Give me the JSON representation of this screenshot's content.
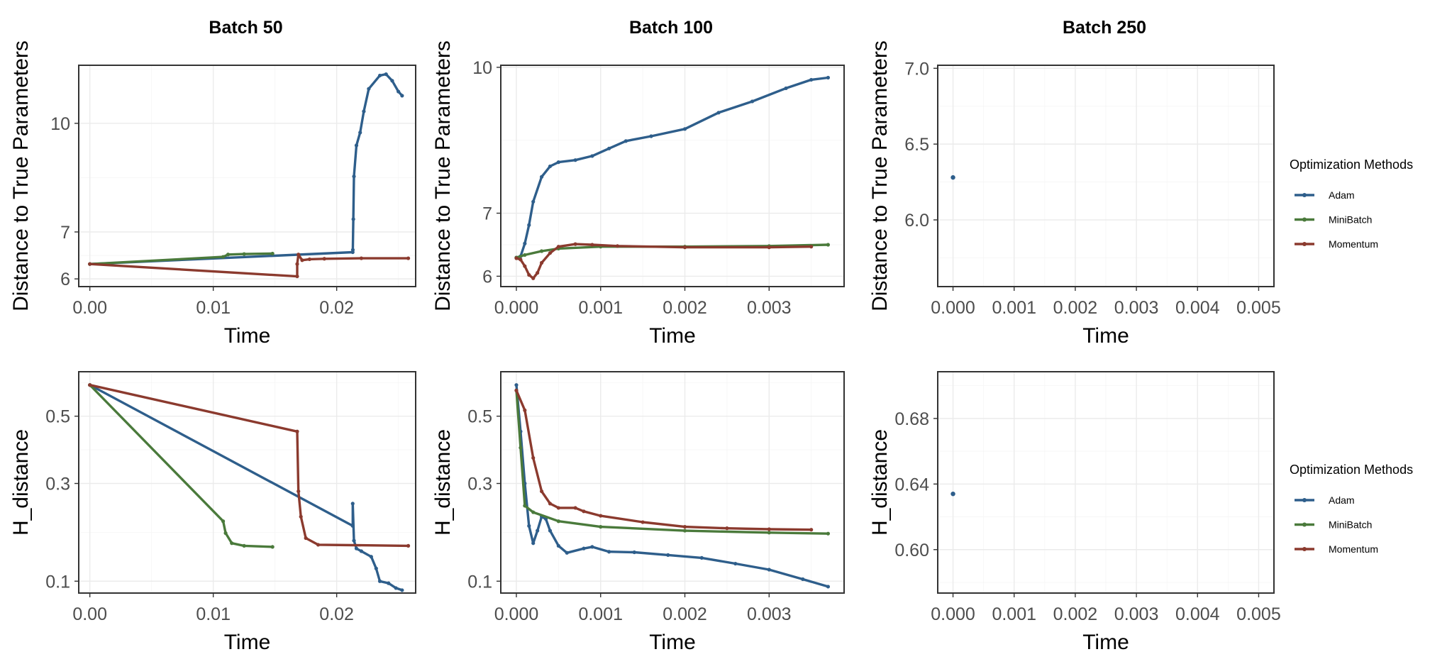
{
  "colors": {
    "Adam": "#2e5e8b",
    "MiniBatch": "#4a7a3b",
    "Momentum": "#8b3a2e"
  },
  "legend": {
    "title": "Optimization Methods",
    "entries": [
      {
        "series": "Adam",
        "label": "Adam"
      },
      {
        "series": "MiniBatch",
        "label": "MiniBatch"
      },
      {
        "series": "Momentum",
        "label": "Momentum"
      }
    ]
  },
  "chart_data": [
    {
      "id": "b50-dist",
      "type": "line",
      "title": "Batch 50",
      "xlabel": "Time",
      "ylabel": "Distance to True Parameters",
      "xlim": [
        -0.0009,
        0.0264
      ],
      "ylim": [
        5.85,
        12.1
      ],
      "xticks": [
        0,
        0.01,
        0.02
      ],
      "xtick_labels": [
        "0.00",
        "0.01",
        "0.02"
      ],
      "yticks": [
        6,
        7,
        10
      ],
      "ytick_labels": [
        "6",
        "7",
        "10"
      ],
      "ytransform": "log",
      "series": [
        {
          "name": "Adam",
          "points": [
            [
              0,
              6.3
            ],
            [
              0.0213,
              6.55
            ],
            [
              0.02131,
              6.6
            ],
            [
              0.02135,
              7.3
            ],
            [
              0.0214,
              8.4
            ],
            [
              0.0216,
              9.3
            ],
            [
              0.0219,
              9.7
            ],
            [
              0.0222,
              10.4
            ],
            [
              0.0226,
              11.2
            ],
            [
              0.0235,
              11.7
            ],
            [
              0.024,
              11.75
            ],
            [
              0.0245,
              11.5
            ],
            [
              0.025,
              11.1
            ],
            [
              0.0253,
              10.95
            ]
          ]
        },
        {
          "name": "MiniBatch",
          "points": [
            [
              0,
              6.3
            ],
            [
              0.0108,
              6.45
            ],
            [
              0.0112,
              6.5
            ],
            [
              0.0125,
              6.51
            ],
            [
              0.0148,
              6.52
            ]
          ]
        },
        {
          "name": "Momentum",
          "points": [
            [
              0,
              6.3
            ],
            [
              0.0168,
              6.05
            ],
            [
              0.0168,
              6.3
            ],
            [
              0.0169,
              6.5
            ],
            [
              0.0172,
              6.38
            ],
            [
              0.0178,
              6.4
            ],
            [
              0.019,
              6.41
            ],
            [
              0.022,
              6.42
            ],
            [
              0.0258,
              6.42
            ]
          ]
        }
      ]
    },
    {
      "id": "b100-dist",
      "type": "line",
      "title": "Batch 100",
      "xlabel": "Time",
      "ylabel": "Distance to True Parameters",
      "xlim": [
        -0.000185,
        0.00389
      ],
      "ylim": [
        5.85,
        10.05
      ],
      "xticks": [
        0,
        0.001,
        0.002,
        0.003
      ],
      "xtick_labels": [
        "0.000",
        "0.001",
        "0.002",
        "0.003"
      ],
      "yticks": [
        6,
        7,
        10
      ],
      "ytick_labels": [
        "6",
        "7",
        "10"
      ],
      "ytransform": "log",
      "series": [
        {
          "name": "Adam",
          "points": [
            [
              0,
              6.28
            ],
            [
              5e-05,
              6.3
            ],
            [
              0.0001,
              6.5
            ],
            [
              0.00015,
              6.8
            ],
            [
              0.0002,
              7.2
            ],
            [
              0.0003,
              7.65
            ],
            [
              0.0004,
              7.85
            ],
            [
              0.0005,
              7.93
            ],
            [
              0.0007,
              7.97
            ],
            [
              0.0009,
              8.05
            ],
            [
              0.0011,
              8.2
            ],
            [
              0.0013,
              8.35
            ],
            [
              0.0016,
              8.45
            ],
            [
              0.002,
              8.6
            ],
            [
              0.0024,
              8.95
            ],
            [
              0.0028,
              9.2
            ],
            [
              0.0032,
              9.5
            ],
            [
              0.0035,
              9.7
            ],
            [
              0.0037,
              9.75
            ]
          ]
        },
        {
          "name": "MiniBatch",
          "points": [
            [
              0,
              6.28
            ],
            [
              0.0001,
              6.32
            ],
            [
              0.0003,
              6.38
            ],
            [
              0.0005,
              6.42
            ],
            [
              0.001,
              6.45
            ],
            [
              0.002,
              6.45
            ],
            [
              0.003,
              6.46
            ],
            [
              0.0037,
              6.48
            ]
          ]
        },
        {
          "name": "Momentum",
          "points": [
            [
              0,
              6.27
            ],
            [
              5e-05,
              6.25
            ],
            [
              0.0001,
              6.15
            ],
            [
              0.00015,
              6.02
            ],
            [
              0.0002,
              5.97
            ],
            [
              0.00025,
              6.05
            ],
            [
              0.0003,
              6.2
            ],
            [
              0.0004,
              6.35
            ],
            [
              0.0005,
              6.45
            ],
            [
              0.0007,
              6.49
            ],
            [
              0.0009,
              6.48
            ],
            [
              0.0012,
              6.46
            ],
            [
              0.002,
              6.44
            ],
            [
              0.003,
              6.44
            ],
            [
              0.0035,
              6.45
            ]
          ]
        }
      ]
    },
    {
      "id": "b250-dist",
      "type": "scatter",
      "title": "Batch 250",
      "xlabel": "Time",
      "ylabel": "Distance to True Parameters",
      "xlim": [
        -0.00025,
        0.00525
      ],
      "ylim": [
        5.56,
        7.02
      ],
      "xticks": [
        0,
        0.001,
        0.002,
        0.003,
        0.004,
        0.005
      ],
      "xtick_labels": [
        "0.000",
        "0.001",
        "0.002",
        "0.003",
        "0.004",
        "0.005"
      ],
      "yticks": [
        6,
        6.5,
        7
      ],
      "ytick_labels": [
        "6.0",
        "6.5",
        "7.0"
      ],
      "ytransform": "linear",
      "series": [
        {
          "name": "Adam",
          "points": [
            [
              0,
              6.28
            ]
          ]
        }
      ]
    },
    {
      "id": "b50-h",
      "type": "line",
      "title": "",
      "xlabel": "Time",
      "ylabel": "H_distance",
      "xlim": [
        -0.0009,
        0.0264
      ],
      "ylim": [
        0.083,
        0.66
      ],
      "xticks": [
        0,
        0.01,
        0.02
      ],
      "xtick_labels": [
        "0.00",
        "0.01",
        "0.02"
      ],
      "yticks": [
        0.1,
        0.3,
        0.5
      ],
      "ytick_labels": [
        "0.1",
        "0.3",
        "0.5"
      ],
      "ytransform": "sqrt",
      "series": [
        {
          "name": "Adam",
          "points": [
            [
              0,
              0.61
            ],
            [
              0.0213,
              0.2
            ],
            [
              0.0213,
              0.25
            ],
            [
              0.0214,
              0.17
            ],
            [
              0.0216,
              0.155
            ],
            [
              0.022,
              0.15
            ],
            [
              0.0228,
              0.14
            ],
            [
              0.0232,
              0.12
            ],
            [
              0.0235,
              0.1
            ],
            [
              0.0242,
              0.097
            ],
            [
              0.0248,
              0.09
            ],
            [
              0.0253,
              0.087
            ]
          ]
        },
        {
          "name": "MiniBatch",
          "points": [
            [
              0,
              0.61
            ],
            [
              0.0108,
              0.21
            ],
            [
              0.011,
              0.185
            ],
            [
              0.0115,
              0.165
            ],
            [
              0.0125,
              0.16
            ],
            [
              0.0148,
              0.158
            ]
          ]
        },
        {
          "name": "Momentum",
          "points": [
            [
              0,
              0.61
            ],
            [
              0.0168,
              0.45
            ],
            [
              0.0169,
              0.28
            ],
            [
              0.0171,
              0.22
            ],
            [
              0.0175,
              0.175
            ],
            [
              0.0185,
              0.162
            ],
            [
              0.0258,
              0.16
            ]
          ]
        }
      ]
    },
    {
      "id": "b100-h",
      "type": "line",
      "title": "",
      "xlabel": "Time",
      "ylabel": "H_distance",
      "xlim": [
        -0.000185,
        0.00389
      ],
      "ylim": [
        0.083,
        0.66
      ],
      "xticks": [
        0,
        0.001,
        0.002,
        0.003
      ],
      "xtick_labels": [
        "0.000",
        "0.001",
        "0.002",
        "0.003"
      ],
      "yticks": [
        0.1,
        0.3,
        0.5
      ],
      "ytick_labels": [
        "0.1",
        "0.3",
        "0.5"
      ],
      "ytransform": "sqrt",
      "series": [
        {
          "name": "Adam",
          "points": [
            [
              0,
              0.61
            ],
            [
              5e-05,
              0.45
            ],
            [
              0.0001,
              0.3
            ],
            [
              0.00015,
              0.2
            ],
            [
              0.0002,
              0.165
            ],
            [
              0.00025,
              0.19
            ],
            [
              0.0003,
              0.22
            ],
            [
              0.00035,
              0.215
            ],
            [
              0.0004,
              0.19
            ],
            [
              0.0005,
              0.16
            ],
            [
              0.0006,
              0.147
            ],
            [
              0.0008,
              0.155
            ],
            [
              0.0009,
              0.158
            ],
            [
              0.0011,
              0.149
            ],
            [
              0.0014,
              0.148
            ],
            [
              0.0018,
              0.143
            ],
            [
              0.0022,
              0.138
            ],
            [
              0.0026,
              0.128
            ],
            [
              0.003,
              0.118
            ],
            [
              0.0034,
              0.103
            ],
            [
              0.0037,
              0.092
            ]
          ]
        },
        {
          "name": "MiniBatch",
          "points": [
            [
              0,
              0.59
            ],
            [
              5e-05,
              0.4
            ],
            [
              0.0001,
              0.245
            ],
            [
              0.0002,
              0.23
            ],
            [
              0.0005,
              0.21
            ],
            [
              0.001,
              0.198
            ],
            [
              0.002,
              0.19
            ],
            [
              0.003,
              0.186
            ],
            [
              0.0037,
              0.184
            ]
          ]
        },
        {
          "name": "Momentum",
          "points": [
            [
              0,
              0.59
            ],
            [
              0.0001,
              0.52
            ],
            [
              0.0002,
              0.37
            ],
            [
              0.0003,
              0.28
            ],
            [
              0.0004,
              0.25
            ],
            [
              0.0005,
              0.24
            ],
            [
              0.0007,
              0.24
            ],
            [
              0.0008,
              0.232
            ],
            [
              0.001,
              0.222
            ],
            [
              0.0015,
              0.208
            ],
            [
              0.002,
              0.198
            ],
            [
              0.0025,
              0.195
            ],
            [
              0.003,
              0.193
            ],
            [
              0.0035,
              0.192
            ]
          ]
        }
      ]
    },
    {
      "id": "b250-h",
      "type": "scatter",
      "title": "",
      "xlabel": "Time",
      "ylabel": "H_distance",
      "xlim": [
        -0.00025,
        0.00525
      ],
      "ylim": [
        0.5735,
        0.7085
      ],
      "xticks": [
        0,
        0.001,
        0.002,
        0.003,
        0.004,
        0.005
      ],
      "xtick_labels": [
        "0.000",
        "0.001",
        "0.002",
        "0.003",
        "0.004",
        "0.005"
      ],
      "yticks": [
        0.6,
        0.64,
        0.68
      ],
      "ytick_labels": [
        "0.60",
        "0.64",
        "0.68"
      ],
      "ytransform": "linear",
      "series": [
        {
          "name": "Adam",
          "points": [
            [
              0,
              0.634
            ]
          ]
        }
      ]
    }
  ]
}
